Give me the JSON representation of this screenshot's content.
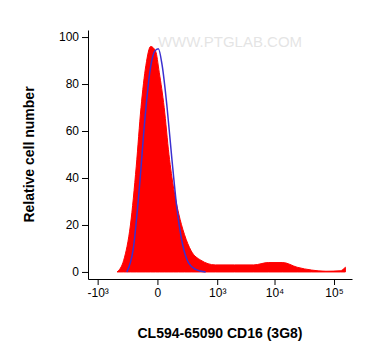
{
  "chart_data": {
    "type": "histogram",
    "x_label": "CL594-65090 CD16 (3G8)",
    "y_label": "Relative cell number",
    "annotations": [
      "WWW.PTGLAB.COM"
    ],
    "log": "x",
    "xlim": [
      -1500,
      200000
    ],
    "ylim": [
      -3,
      103
    ],
    "xticks": [
      {
        "value": -1000,
        "label": "-10³"
      },
      {
        "value": 0,
        "label": "0"
      },
      {
        "value": 1000,
        "label": "10³"
      },
      {
        "value": 10000,
        "label": "10⁴"
      },
      {
        "value": 100000,
        "label": "10⁵"
      }
    ],
    "yticks": [
      0,
      20,
      40,
      60,
      80,
      100
    ],
    "series": [
      {
        "type": "area",
        "color": "#ff0000",
        "x": [
          -416,
          -296,
          -203,
          -140,
          -98,
          -62,
          -33,
          -8,
          8,
          33,
          62,
          98,
          140,
          203,
          296,
          480,
          920,
          2050,
          4440,
          7840,
          13800,
          24100,
          42200,
          73300,
          127000,
          155000
        ],
        "values": [
          0,
          5,
          20,
          45,
          70,
          88,
          96,
          94,
          85,
          70,
          50,
          35,
          25,
          16,
          9,
          5,
          3,
          3,
          3,
          4,
          4,
          2,
          0.8,
          0.3,
          0.5,
          2
        ]
      },
      {
        "type": "line",
        "color": "#3b30d0",
        "x": [
          -250,
          -170,
          -113,
          -69,
          -38,
          -12,
          4,
          22,
          50,
          83,
          122,
          180,
          255,
          380,
          600
        ],
        "values": [
          0,
          10,
          35,
          65,
          85,
          94,
          95,
          88,
          70,
          48,
          28,
          12,
          4,
          1,
          0
        ]
      }
    ]
  }
}
